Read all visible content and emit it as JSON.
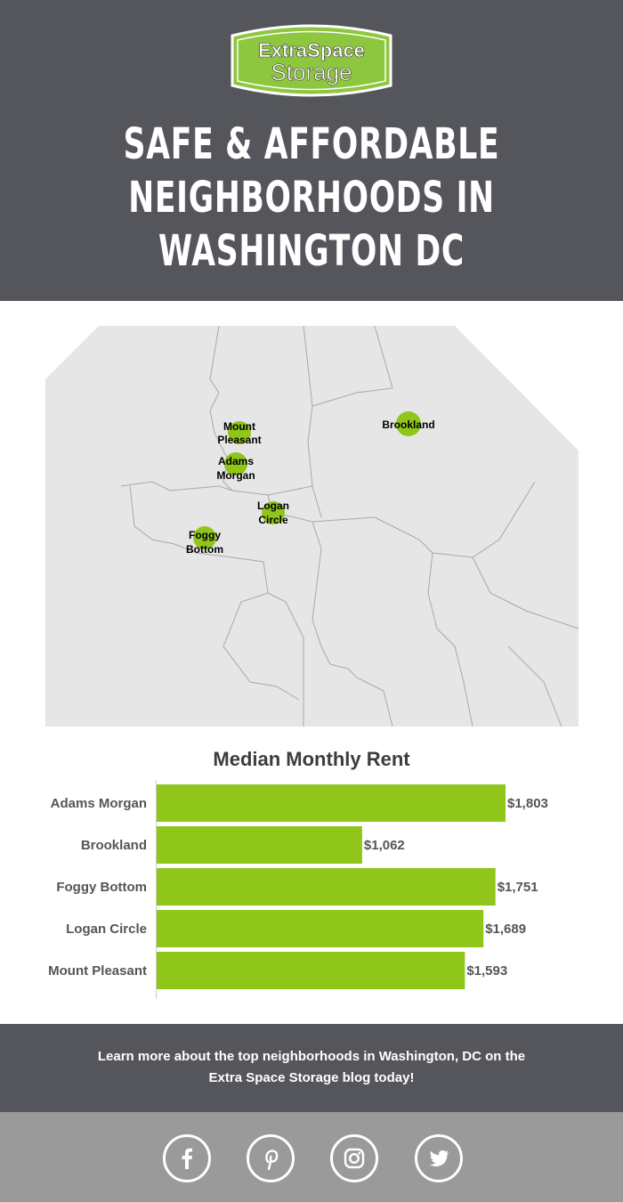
{
  "logo": {
    "line1": "ExtraSpace",
    "line2": "Storage"
  },
  "header": {
    "title_lines": [
      "SAFE & AFFORDABLE",
      "NEIGHBORHOODS IN",
      "WASHINGTON DC"
    ]
  },
  "map": {
    "markers": [
      {
        "label1": "Mount",
        "label2": "Pleasant"
      },
      {
        "label1": "Adams",
        "label2": "Morgan"
      },
      {
        "label1": "Logan",
        "label2": "Circle"
      },
      {
        "label1": "Foggy",
        "label2": "Bottom"
      },
      {
        "label1": "Brookland",
        "label2": ""
      }
    ]
  },
  "chart_data": {
    "type": "bar",
    "orientation": "horizontal",
    "title": "Median Monthly Rent",
    "categories": [
      "Adams Morgan",
      "Brookland",
      "Foggy Bottom",
      "Logan Circle",
      "Mount Pleasant"
    ],
    "values": [
      1803,
      1062,
      1751,
      1689,
      1593
    ],
    "value_labels": [
      "$1,803",
      "$1,062",
      "$1,751",
      "$1,689",
      "$1,593"
    ],
    "xlim": [
      0,
      1803
    ],
    "bar_color": "#8fc619"
  },
  "footer": {
    "line1": "Learn more about the top neighborhoods in Washington, DC on the",
    "line2": "Extra Space Storage blog today!"
  },
  "social": [
    "facebook",
    "pinterest",
    "instagram",
    "twitter"
  ]
}
